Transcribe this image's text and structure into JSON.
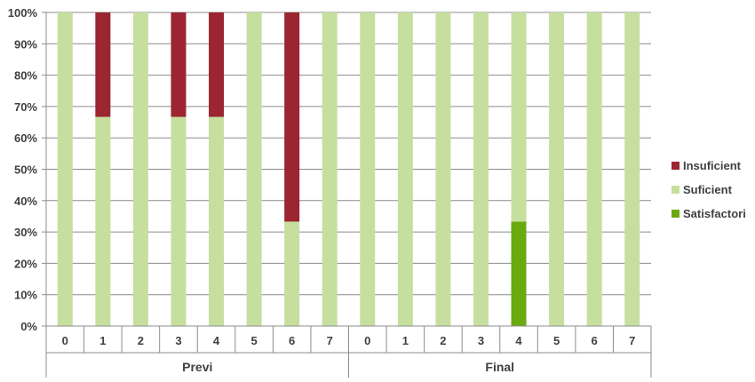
{
  "chart_data": {
    "type": "bar",
    "stacked": true,
    "percent": true,
    "groups": [
      {
        "label": "Previ",
        "categories": [
          "0",
          "1",
          "2",
          "3",
          "4",
          "5",
          "6",
          "7"
        ]
      },
      {
        "label": "Final",
        "categories": [
          "0",
          "1",
          "2",
          "3",
          "4",
          "5",
          "6",
          "7"
        ]
      }
    ],
    "series": [
      {
        "name": "Satisfactori",
        "color": "#6aa90f",
        "values": [
          0,
          0,
          0,
          0,
          0,
          0,
          0,
          0,
          0,
          0,
          0,
          0,
          33.3,
          0,
          0,
          0
        ]
      },
      {
        "name": "Suficient",
        "color": "#c6df9e",
        "values": [
          100,
          66.7,
          100,
          66.7,
          66.7,
          100,
          33.3,
          100,
          100,
          100,
          100,
          100,
          66.7,
          100,
          100,
          100
        ]
      },
      {
        "name": "Insuficient",
        "color": "#9b2530",
        "values": [
          0,
          33.3,
          0,
          33.3,
          33.3,
          0,
          66.7,
          0,
          0,
          0,
          0,
          0,
          0,
          0,
          0,
          0
        ]
      }
    ],
    "ylim": [
      0,
      100
    ],
    "yticks": [
      "0%",
      "10%",
      "20%",
      "30%",
      "40%",
      "50%",
      "60%",
      "70%",
      "80%",
      "90%",
      "100%"
    ],
    "grid": true,
    "legend_position": "right",
    "legend_order": [
      "Insuficient",
      "Suficient",
      "Satisfactori"
    ]
  }
}
